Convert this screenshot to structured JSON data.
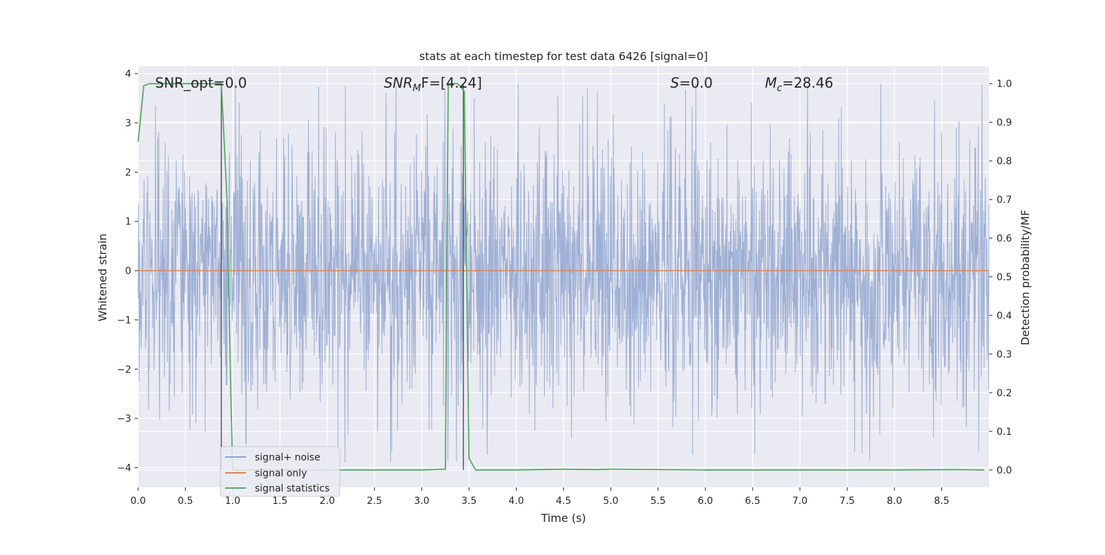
{
  "chart_data": {
    "type": "line",
    "title": "stats at each timestep for test data 6426 [signal=0]",
    "xlabel": "Time (s)",
    "ylabel": "Whitened strain",
    "y2label": "Detection probability/MF",
    "xlim": [
      0,
      9
    ],
    "ylim": [
      -4.4,
      4.15
    ],
    "y2lim": [
      -0.045,
      1.045
    ],
    "xticks": [
      0.0,
      0.5,
      1.0,
      1.5,
      2.0,
      2.5,
      3.0,
      3.5,
      4.0,
      4.5,
      5.0,
      5.5,
      6.0,
      6.5,
      7.0,
      7.5,
      8.0,
      8.5
    ],
    "xtick_labels": [
      "0.0",
      "0.5",
      "1.0",
      "1.5",
      "2.0",
      "2.5",
      "3.0",
      "3.5",
      "4.0",
      "4.5",
      "5.0",
      "5.5",
      "6.0",
      "6.5",
      "7.0",
      "7.5",
      "8.0",
      "8.5"
    ],
    "yticks": [
      -4,
      -3,
      -2,
      -1,
      0,
      1,
      2,
      3,
      4
    ],
    "ytick_labels": [
      "−4",
      "−3",
      "−2",
      "−1",
      "0",
      "1",
      "2",
      "3",
      "4"
    ],
    "y2ticks": [
      0.0,
      0.1,
      0.2,
      0.3,
      0.4,
      0.5,
      0.6,
      0.7,
      0.8,
      0.9,
      1.0
    ],
    "y2tick_labels": [
      "0.0",
      "0.1",
      "0.2",
      "0.3",
      "0.4",
      "0.5",
      "0.6",
      "0.7",
      "0.8",
      "0.9",
      "1.0"
    ],
    "grid": true,
    "legend_position": "lower-left",
    "series": [
      {
        "name": "signal+ noise",
        "axis": "left",
        "color": "#8fa4cf",
        "style": "dense noise, about -1.6 to 1.6 typical, peaks to about 3.8 and -4.0",
        "typical_amplitude": 1.6,
        "peak_max": 3.8,
        "peak_min": -4.0,
        "n_samples": 2300
      },
      {
        "name": "signal only",
        "axis": "left",
        "color": "#dd8452",
        "x": [
          0.0,
          9.0
        ],
        "y": [
          0.0,
          0.0
        ]
      },
      {
        "name": "signal statistics",
        "axis": "right",
        "color": "#55a868",
        "x": [
          0.0,
          0.06,
          0.12,
          0.3,
          0.6,
          0.88,
          0.94,
          0.98,
          1.0,
          1.5,
          2.0,
          2.5,
          3.0,
          3.25,
          3.28,
          3.32,
          3.38,
          3.45,
          3.5,
          3.57,
          4.0,
          4.5,
          4.85,
          5.0,
          6.0,
          7.0,
          8.0,
          8.6,
          8.95
        ],
        "y": [
          0.85,
          0.995,
          1.0,
          1.0,
          1.0,
          1.0,
          0.7,
          0.2,
          0.0,
          0.0,
          0.0,
          0.0,
          0.0,
          0.002,
          1.0,
          1.0,
          1.0,
          0.98,
          0.03,
          0.0,
          0.0,
          0.002,
          0.001,
          0.002,
          0.0,
          0.0,
          0.0,
          0.001,
          0.0
        ]
      }
    ],
    "vlines": [
      {
        "x": 0.88,
        "color": "#555555"
      },
      {
        "x": 3.44,
        "color": "#555555"
      }
    ],
    "annotations": [
      {
        "text": "SNR_opt=0.0",
        "x": 0.18,
        "y": 3.8
      },
      {
        "text_main": "SNR",
        "text_sub": "M",
        "text_rest": "F=[4.24]",
        "x": 2.6,
        "y": 3.8
      },
      {
        "text_main": "S",
        "text_rest": "=0.0",
        "x": 5.63,
        "y": 3.8
      },
      {
        "text_main": "M",
        "text_sub": "c",
        "text_rest": "=28.46",
        "x": 6.63,
        "y": 3.8
      }
    ]
  }
}
